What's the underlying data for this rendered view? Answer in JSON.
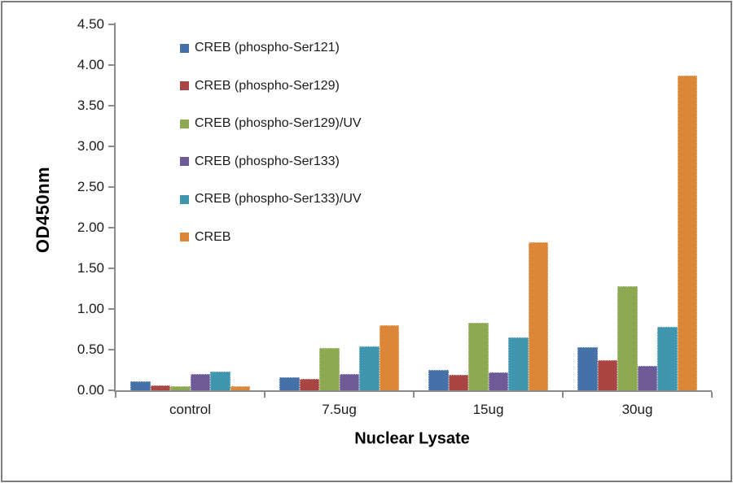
{
  "chart_data": {
    "type": "bar",
    "title": "",
    "xlabel": "Nuclear Lysate",
    "ylabel": "OD450nm",
    "categories": [
      "control",
      "7.5ug",
      "15ug",
      "30ug"
    ],
    "series": [
      {
        "name": "CREB (phospho-Ser121)",
        "color": "#4472A8",
        "values": [
          0.11,
          0.16,
          0.25,
          0.53
        ]
      },
      {
        "name": "CREB (phospho-Ser129)",
        "color": "#A94643",
        "values": [
          0.06,
          0.14,
          0.19,
          0.37
        ]
      },
      {
        "name": "CREB (phospho-Ser129)/UV",
        "color": "#8CA851",
        "values": [
          0.05,
          0.52,
          0.83,
          1.28
        ]
      },
      {
        "name": "CREB (phospho-Ser133)",
        "color": "#6D5A96",
        "values": [
          0.2,
          0.2,
          0.22,
          0.3
        ]
      },
      {
        "name": "CREB (phospho-Ser133)/UV",
        "color": "#4096AE",
        "values": [
          0.23,
          0.54,
          0.65,
          0.78
        ]
      },
      {
        "name": "CREB",
        "color": "#DC8637",
        "values": [
          0.05,
          0.8,
          1.82,
          3.87
        ]
      }
    ],
    "ylim": [
      0,
      4.5
    ],
    "y_tick_step": 0.5,
    "y_ticks": [
      "0.00",
      "0.50",
      "1.00",
      "1.50",
      "2.00",
      "2.50",
      "3.00",
      "3.50",
      "4.00",
      "4.50"
    ],
    "grid": false,
    "legend_position": "inside-top-left",
    "axis_color": "#8a8a8a",
    "text_color": "#1b1b1b"
  }
}
